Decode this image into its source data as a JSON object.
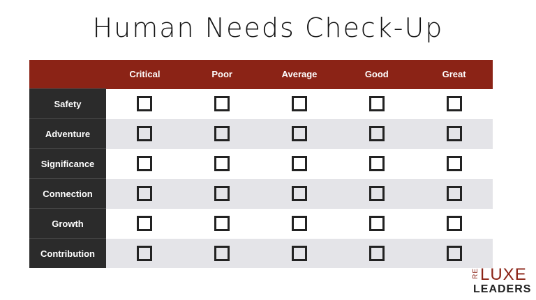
{
  "title": "Human Needs Check-Up",
  "table": {
    "columns": [
      "Critical",
      "Poor",
      "Average",
      "Good",
      "Great"
    ],
    "rows": [
      "Safety",
      "Adventure",
      "Significance",
      "Connection",
      "Growth",
      "Contribution"
    ]
  },
  "logo": {
    "prefix": "RE",
    "main": "LUXE",
    "sub": "LEADERS"
  }
}
